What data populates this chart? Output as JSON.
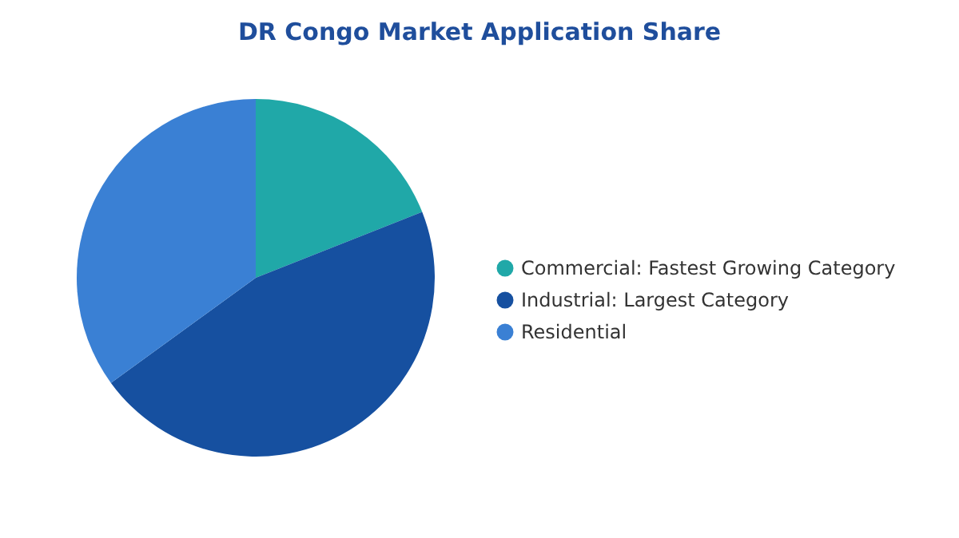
{
  "chart_data": {
    "type": "pie",
    "title": "DR Congo Market Application Share",
    "categories": [
      "Commercial: Fastest Growing Category",
      "Industrial: Largest Category",
      "Residential"
    ],
    "values": [
      19,
      46,
      35
    ],
    "colors": [
      "#20a8a8",
      "#1650a0",
      "#3a80d4"
    ],
    "legend": "right"
  }
}
